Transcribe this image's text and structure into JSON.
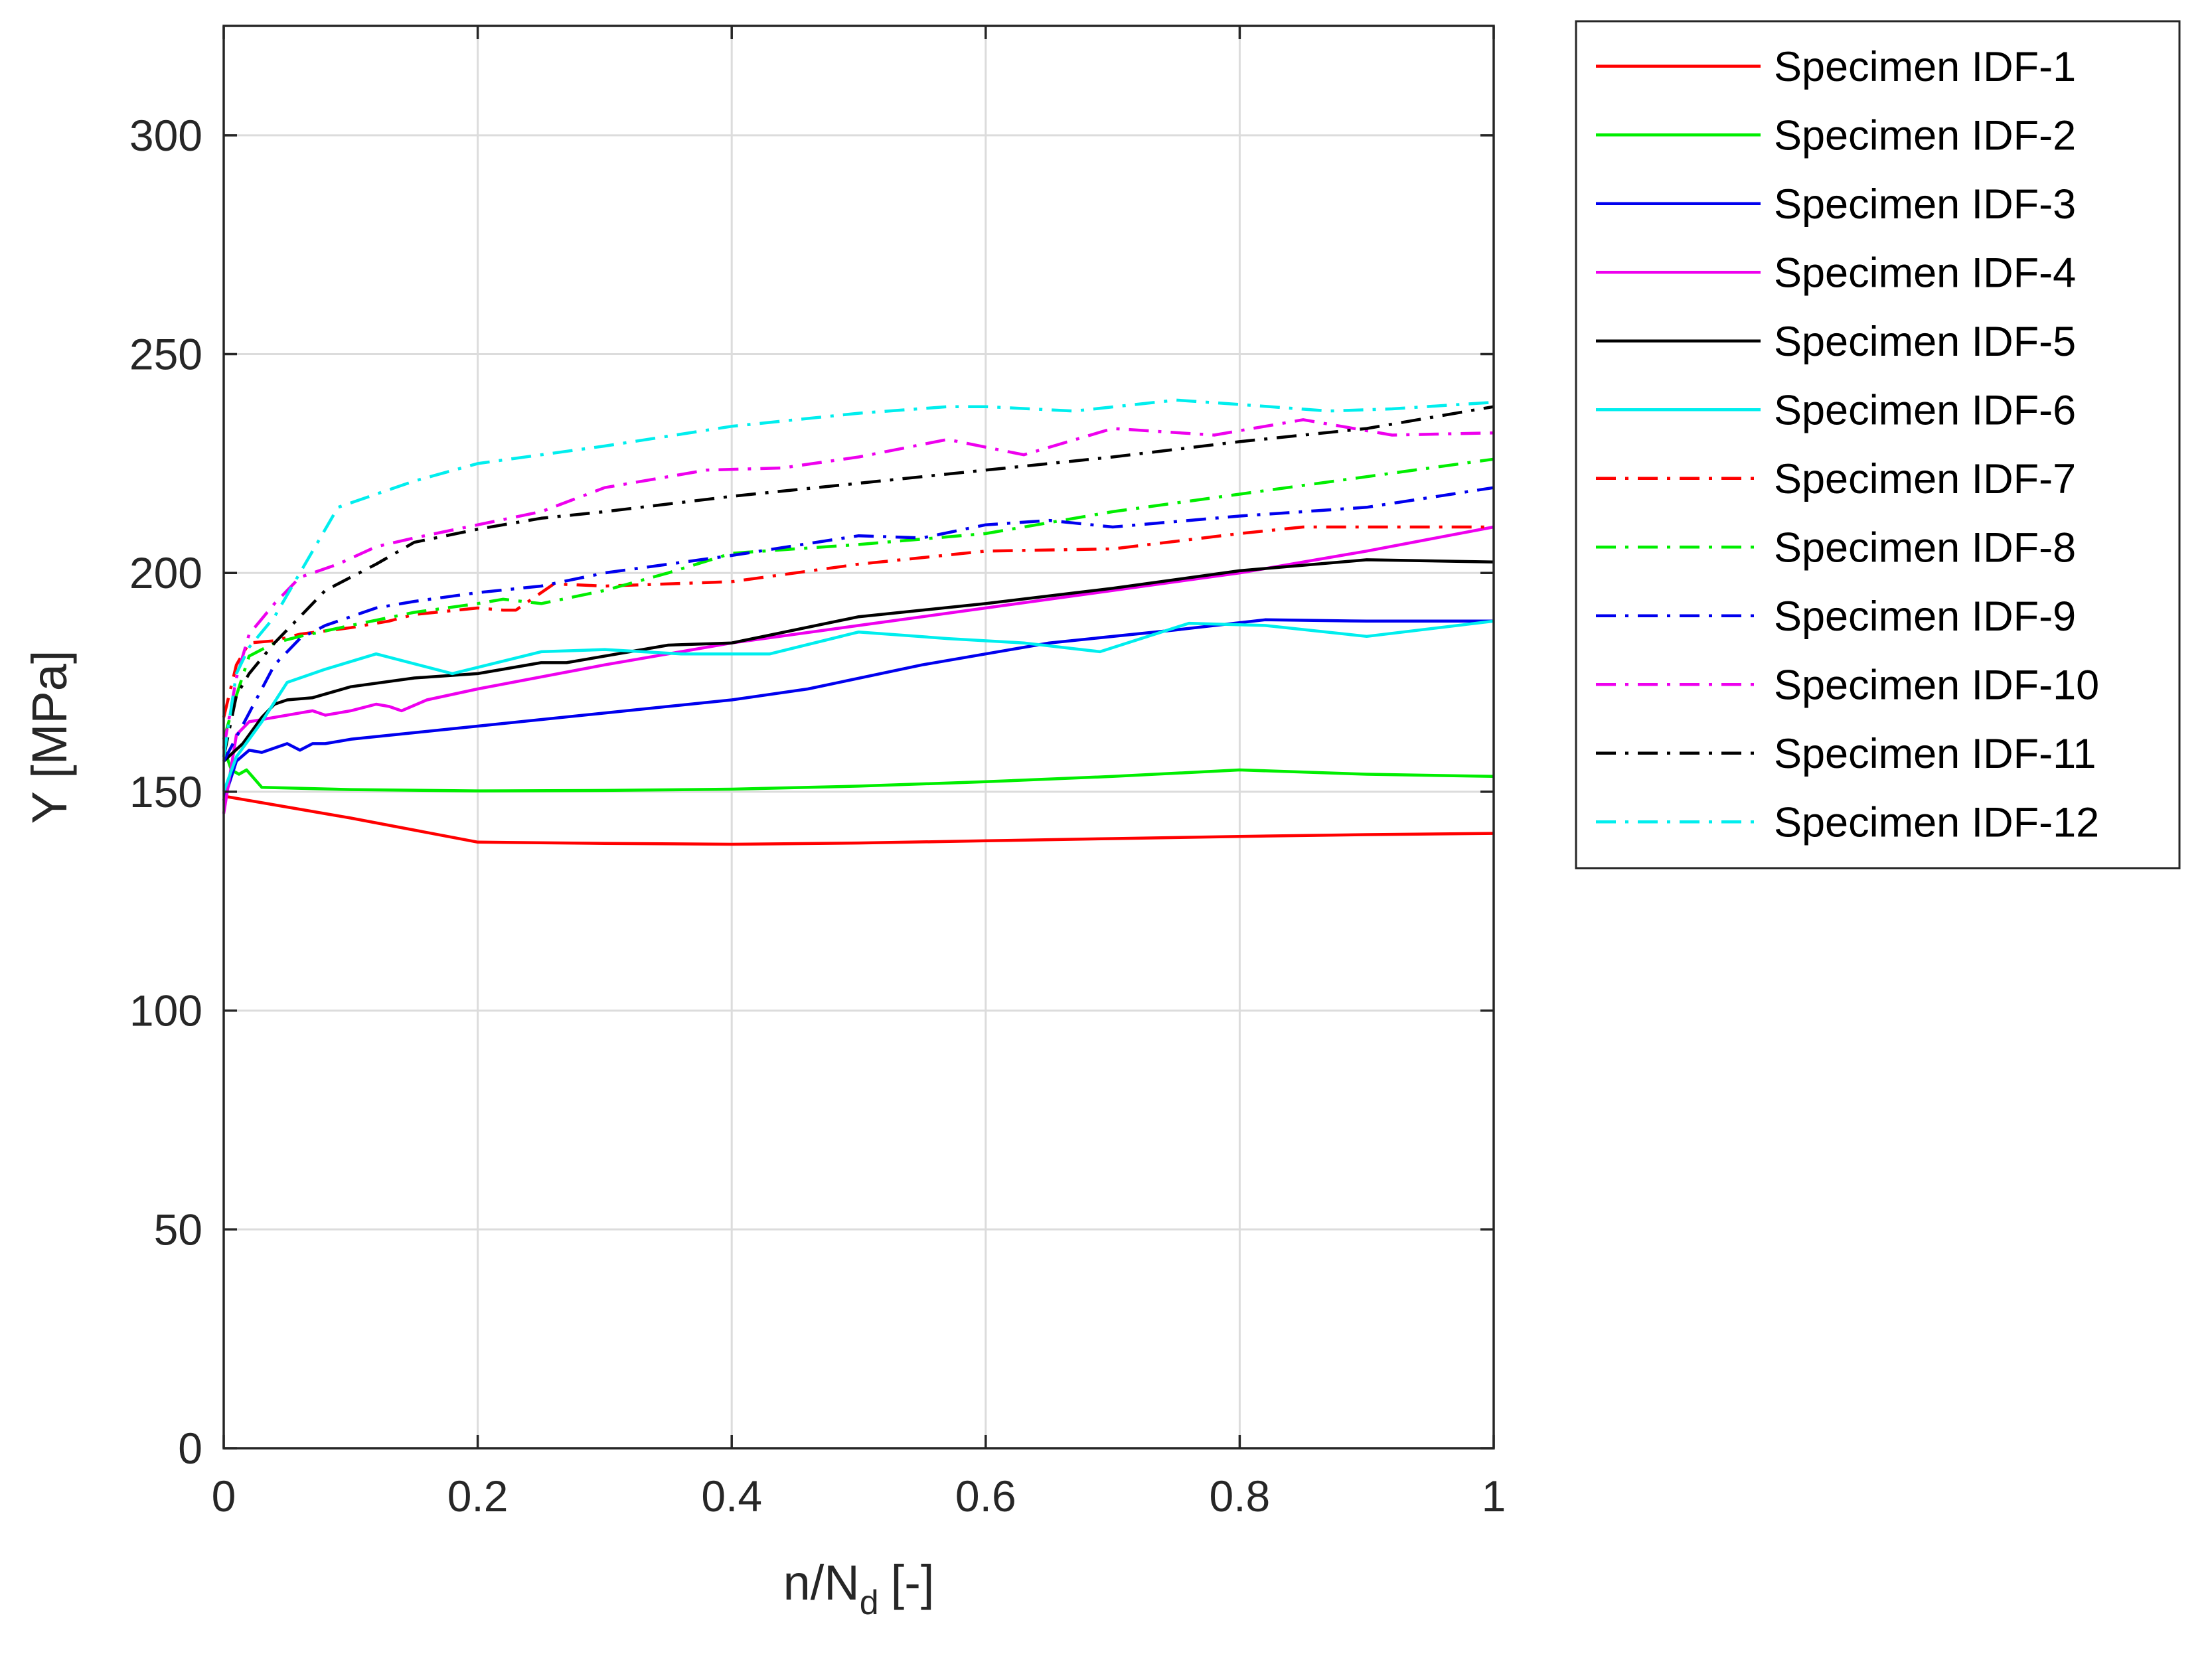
{
  "chart_data": {
    "type": "line",
    "xlabel": "n/N",
    "xlabel_subscript": "d",
    "xlabel_suffix": "[-]",
    "ylabel": "Y [MPa]",
    "xlim": [
      0,
      1
    ],
    "ylim": [
      0,
      325
    ],
    "xticks": [
      0,
      0.2,
      0.4,
      0.6,
      0.8,
      1
    ],
    "xtick_labels": [
      "0",
      "0.2",
      "0.4",
      "0.6",
      "0.8",
      "1"
    ],
    "yticks": [
      0,
      50,
      100,
      150,
      200,
      250,
      300
    ],
    "ytick_labels": [
      "0",
      "50",
      "100",
      "150",
      "200",
      "250",
      "300"
    ],
    "grid": true,
    "legend_position": "outside-right-top",
    "series": [
      {
        "name": "Specimen IDF-1",
        "color": "#ff0000",
        "style": "solid",
        "x": [
          0,
          0.1,
          0.2,
          0.3,
          0.4,
          0.5,
          0.6,
          0.7,
          0.8,
          0.9,
          1.0
        ],
        "y": [
          149,
          144,
          138.5,
          138.2,
          138,
          138.3,
          138.8,
          139.3,
          139.8,
          140.2,
          140.5
        ]
      },
      {
        "name": "Specimen IDF-2",
        "color": "#00ee00",
        "style": "solid",
        "x": [
          0,
          0.006,
          0.012,
          0.018,
          0.024,
          0.03,
          0.1,
          0.2,
          0.3,
          0.4,
          0.5,
          0.6,
          0.7,
          0.8,
          0.9,
          1.0
        ],
        "y": [
          160,
          155,
          154,
          155,
          153,
          151,
          150.5,
          150.2,
          150.3,
          150.6,
          151.3,
          152.3,
          153.5,
          155,
          154,
          153.5
        ]
      },
      {
        "name": "Specimen IDF-3",
        "color": "#0000ee",
        "style": "solid",
        "x": [
          0,
          0.01,
          0.02,
          0.03,
          0.04,
          0.05,
          0.06,
          0.07,
          0.08,
          0.09,
          0.1,
          0.15,
          0.2,
          0.3,
          0.4,
          0.46,
          0.55,
          0.65,
          0.75,
          0.82,
          0.9,
          1.0
        ],
        "y": [
          148,
          157,
          159.5,
          159,
          160,
          161,
          159.5,
          161,
          161,
          161.5,
          162,
          163.5,
          165,
          168,
          171,
          173.5,
          179,
          184,
          187,
          189.3,
          189,
          189
        ]
      },
      {
        "name": "Specimen IDF-4",
        "color": "#ee00ee",
        "style": "solid",
        "x": [
          0,
          0.01,
          0.02,
          0.04,
          0.06,
          0.07,
          0.08,
          0.09,
          0.1,
          0.12,
          0.13,
          0.14,
          0.16,
          0.2,
          0.3,
          0.4,
          0.5,
          0.6,
          0.7,
          0.8,
          0.9,
          1.0
        ],
        "y": [
          145,
          163,
          166,
          167,
          168,
          168.5,
          167.5,
          168,
          168.5,
          170,
          169.5,
          168.5,
          171,
          173.5,
          179,
          184,
          188,
          192,
          196,
          200,
          205,
          210.5
        ]
      },
      {
        "name": "Specimen IDF-5",
        "color": "#000000",
        "style": "solid",
        "x": [
          0,
          0.015,
          0.03,
          0.04,
          0.05,
          0.07,
          0.1,
          0.15,
          0.2,
          0.25,
          0.27,
          0.35,
          0.4,
          0.5,
          0.6,
          0.7,
          0.8,
          0.9,
          1.0
        ],
        "y": [
          157,
          161,
          167,
          170,
          171,
          171.5,
          174,
          176,
          177,
          179.5,
          179.5,
          183.5,
          184,
          190,
          193,
          196.5,
          200.5,
          203,
          202.5
        ]
      },
      {
        "name": "Specimen IDF-6",
        "color": "#00eeee",
        "style": "solid",
        "x": [
          0,
          0.01,
          0.03,
          0.05,
          0.08,
          0.12,
          0.18,
          0.25,
          0.3,
          0.36,
          0.43,
          0.5,
          0.57,
          0.63,
          0.69,
          0.76,
          0.82,
          0.9,
          1.0
        ],
        "y": [
          150,
          158,
          166,
          175,
          178,
          181.5,
          177,
          182,
          182.5,
          181.5,
          181.5,
          186.5,
          185,
          184,
          182,
          188.5,
          188,
          185.5,
          189
        ]
      },
      {
        "name": "Specimen IDF-7",
        "color": "#ff0000",
        "style": "dashdot",
        "x": [
          0,
          0.01,
          0.02,
          0.04,
          0.06,
          0.1,
          0.13,
          0.15,
          0.2,
          0.22,
          0.23,
          0.26,
          0.3,
          0.4,
          0.5,
          0.6,
          0.7,
          0.8,
          0.85,
          0.9,
          1.0
        ],
        "y": [
          167,
          179,
          184,
          184.5,
          186,
          187.5,
          189,
          190.5,
          192,
          191.5,
          191.5,
          197.5,
          197,
          198,
          202,
          205,
          205.5,
          209,
          210.5,
          210.5,
          210.5
        ]
      },
      {
        "name": "Specimen IDF-8",
        "color": "#00ee00",
        "style": "dashdot",
        "x": [
          0,
          0.01,
          0.02,
          0.04,
          0.06,
          0.1,
          0.15,
          0.2,
          0.22,
          0.25,
          0.3,
          0.35,
          0.4,
          0.5,
          0.6,
          0.7,
          0.8,
          0.9,
          1.0
        ],
        "y": [
          162,
          172,
          181,
          184,
          185.5,
          188,
          191,
          193,
          194,
          193,
          196,
          200,
          204.5,
          206.5,
          209,
          214,
          218,
          222,
          226
        ]
      },
      {
        "name": "Specimen IDF-9",
        "color": "#0000ee",
        "style": "dashdot",
        "x": [
          0,
          0.02,
          0.04,
          0.06,
          0.08,
          0.1,
          0.12,
          0.15,
          0.2,
          0.25,
          0.3,
          0.4,
          0.5,
          0.55,
          0.6,
          0.65,
          0.7,
          0.8,
          0.9,
          1.0
        ],
        "y": [
          157,
          168,
          179,
          185,
          188,
          190,
          192,
          193.5,
          195.5,
          197,
          200,
          204,
          208.5,
          208,
          211,
          212,
          210.5,
          213,
          215,
          219.5
        ]
      },
      {
        "name": "Specimen IDF-10",
        "color": "#ee00ee",
        "style": "dashdot",
        "x": [
          0,
          0.01,
          0.02,
          0.04,
          0.06,
          0.09,
          0.12,
          0.15,
          0.2,
          0.25,
          0.3,
          0.38,
          0.44,
          0.5,
          0.57,
          0.63,
          0.7,
          0.78,
          0.85,
          0.92,
          1.0
        ],
        "y": [
          160,
          176,
          186,
          193,
          199,
          202,
          206,
          208,
          211,
          214,
          219.5,
          223.5,
          224,
          226.5,
          230.5,
          227,
          233,
          231.5,
          235,
          231.5,
          232
        ]
      },
      {
        "name": "Specimen IDF-11",
        "color": "#000000",
        "style": "dashdot",
        "x": [
          0,
          0.01,
          0.02,
          0.04,
          0.06,
          0.08,
          0.1,
          0.12,
          0.15,
          0.2,
          0.25,
          0.3,
          0.4,
          0.5,
          0.6,
          0.7,
          0.8,
          0.9,
          1.0
        ],
        "y": [
          158,
          172,
          177,
          184,
          190,
          196,
          199,
          202,
          207,
          210,
          212.5,
          214,
          217.5,
          220.5,
          223.5,
          226.5,
          230,
          233,
          238
        ]
      },
      {
        "name": "Specimen IDF-12",
        "color": "#00eeee",
        "style": "dashdot",
        "x": [
          0,
          0.01,
          0.02,
          0.04,
          0.06,
          0.09,
          0.12,
          0.15,
          0.2,
          0.3,
          0.4,
          0.5,
          0.57,
          0.6,
          0.67,
          0.75,
          0.8,
          0.87,
          0.92,
          1.0
        ],
        "y": [
          158,
          177,
          183,
          190,
          200,
          215,
          218,
          221,
          225,
          229,
          233.5,
          236.5,
          238,
          238,
          237,
          239.5,
          238.5,
          237,
          237.5,
          239
        ]
      }
    ]
  }
}
